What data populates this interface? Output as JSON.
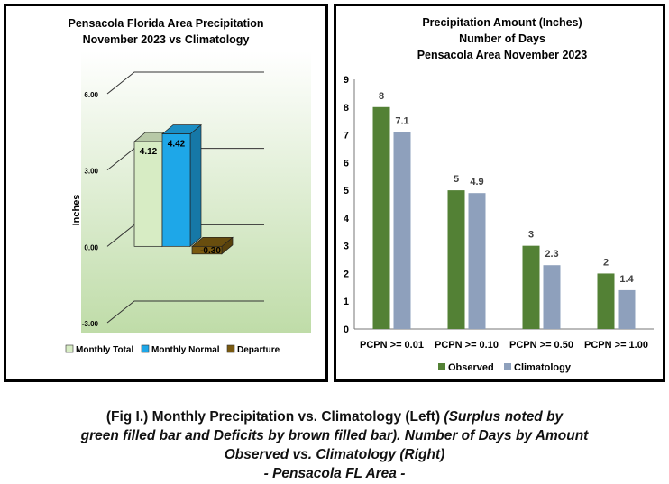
{
  "chart_data": [
    {
      "type": "bar",
      "title_lines": [
        "Pensacola Florida Area Precipitation",
        "November 2023 vs Climatology"
      ],
      "ylabel": "Inches",
      "ylim": [
        -3,
        6
      ],
      "yticks": [
        "6.00",
        "3.00",
        "0.00",
        "-3.00"
      ],
      "series": [
        {
          "name": "Monthly Total",
          "value": 4.12,
          "label": "4.12",
          "color": "#d7ecc4"
        },
        {
          "name": "Monthly Normal",
          "value": 4.42,
          "label": "4.42",
          "color": "#1ea7e8"
        },
        {
          "name": "Departure",
          "value": -0.3,
          "label": "-0.30",
          "color": "#7a5a10"
        }
      ],
      "legend": "bottom"
    },
    {
      "type": "bar",
      "title_lines": [
        "Precipitation Amount (Inches)",
        "Number of Days",
        "Pensacola Area November 2023"
      ],
      "categories": [
        "PCPN >= 0.01",
        "PCPN >= 0.10",
        "PCPN >= 0.50",
        "PCPN >= 1.00"
      ],
      "ylim": [
        0,
        9
      ],
      "yticks": [
        "0",
        "1",
        "2",
        "3",
        "4",
        "5",
        "6",
        "7",
        "8",
        "9"
      ],
      "series": [
        {
          "name": "Observed",
          "values": [
            8,
            5,
            3,
            2
          ],
          "labels": [
            "8",
            "5",
            "3",
            "2"
          ],
          "color": "#538135"
        },
        {
          "name": "Climatology",
          "values": [
            7.1,
            4.9,
            2.3,
            1.4
          ],
          "labels": [
            "7.1",
            "4.9",
            "2.3",
            "1.4"
          ],
          "color": "#8ea0bc"
        }
      ],
      "legend": "bottom",
      "grid": false
    }
  ],
  "caption": {
    "line1_regular": "(Fig I.) Monthly Precipitation vs. Climatology (Left) ",
    "line1_italic": "(Surplus noted by",
    "line2": "green filled bar and Deficits by brown filled bar). Number of Days by Amount",
    "line3": "Observed vs. Climatology (Right)",
    "line4": "- Pensacola FL Area -"
  }
}
